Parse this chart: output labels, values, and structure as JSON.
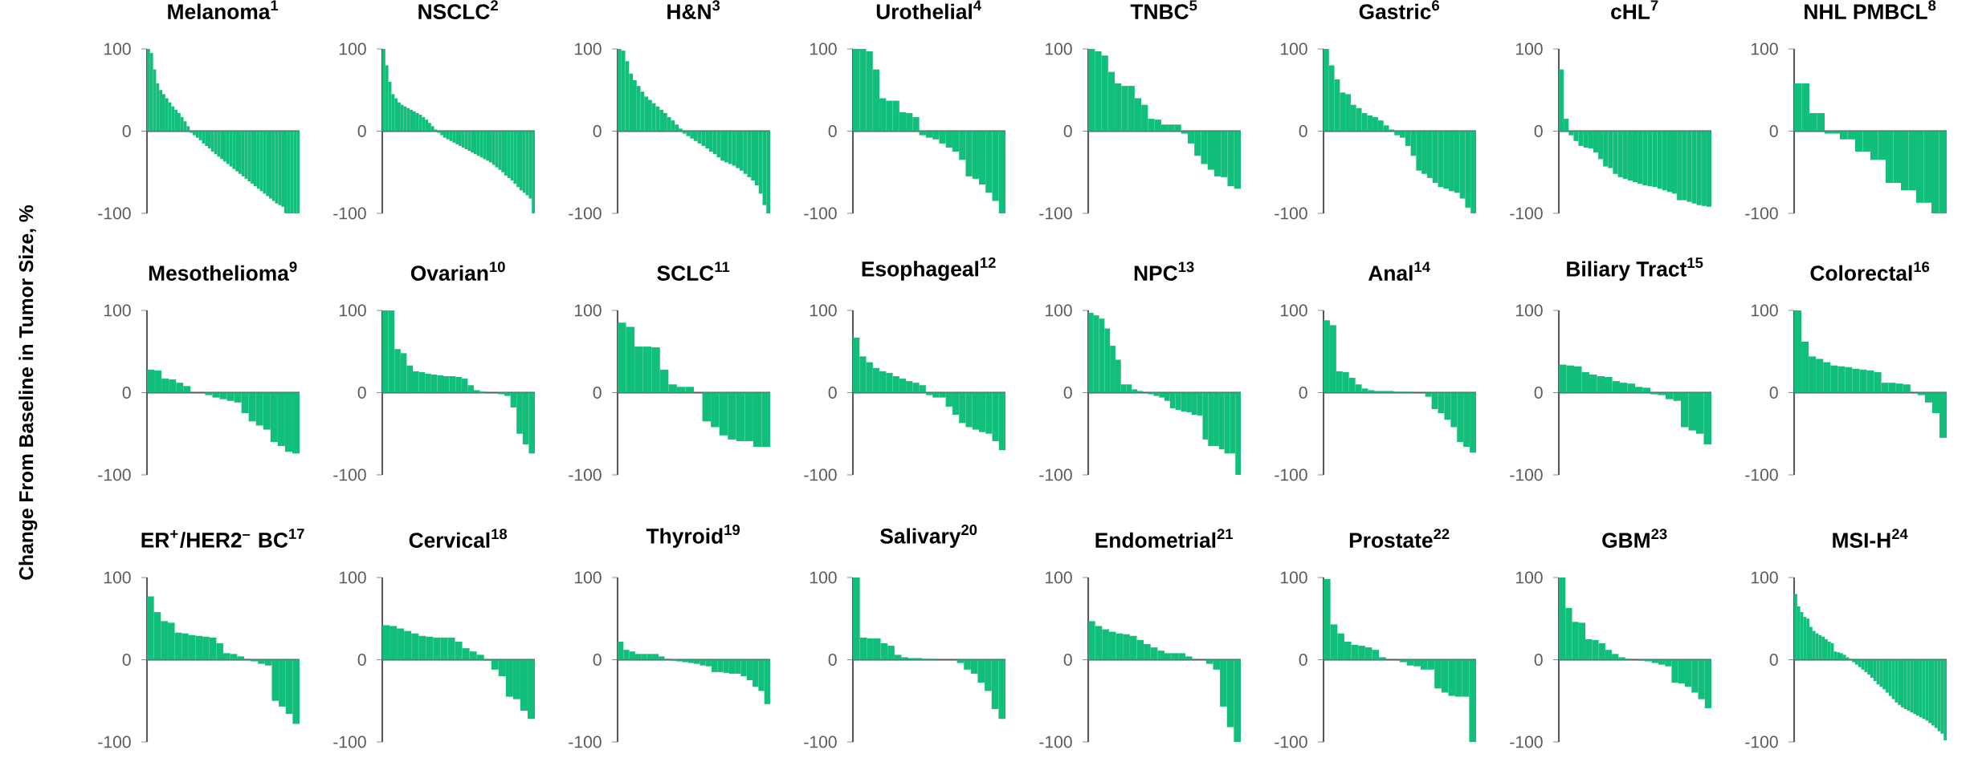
{
  "chart_data": [
    {
      "type": "bar",
      "title": "Melanoma$^{1}$",
      "color": "#12bf7a",
      "ylim": [
        -100,
        100
      ],
      "yticks": [
        -100,
        0,
        100
      ],
      "categories": [
        null,
        null,
        null,
        null,
        null,
        null,
        null,
        null,
        null,
        null,
        null,
        null,
        null,
        null,
        null,
        null,
        null,
        null,
        null,
        null,
        null,
        null,
        null,
        null,
        null,
        null,
        null,
        null,
        null,
        null,
        null,
        null,
        null,
        null,
        null,
        null,
        null,
        null,
        null,
        null,
        null,
        null,
        null,
        null,
        null,
        null,
        null,
        null,
        null,
        null
      ],
      "values": [
        100,
        95,
        75,
        58,
        50,
        45,
        40,
        35,
        30,
        26,
        22,
        17,
        12,
        6,
        -2,
        -5,
        -8,
        -11,
        -15,
        -18,
        -21,
        -25,
        -28,
        -31,
        -34,
        -37,
        -40,
        -43,
        -46,
        -49,
        -52,
        -55,
        -58,
        -61,
        -64,
        -67,
        -70,
        -73,
        -76,
        -79,
        -82,
        -85,
        -88,
        -90,
        -92,
        -100,
        -100,
        -100,
        -100,
        -100
      ]
    },
    {
      "type": "bar",
      "title": "NSCLC$^{2}$",
      "color": "#12bf7a",
      "ylim": [
        -100,
        100
      ],
      "yticks": [
        -100,
        0,
        100
      ],
      "categories": [
        null,
        null,
        null,
        null,
        null,
        null,
        null,
        null,
        null,
        null,
        null,
        null,
        null,
        null,
        null,
        null,
        null,
        null,
        null,
        null,
        null,
        null,
        null,
        null,
        null,
        null,
        null,
        null,
        null,
        null,
        null,
        null,
        null,
        null,
        null,
        null,
        null,
        null,
        null,
        null,
        null,
        null,
        null,
        null,
        null,
        null,
        null,
        null,
        null,
        null
      ],
      "values": [
        100,
        80,
        60,
        45,
        40,
        35,
        32,
        30,
        28,
        26,
        24,
        22,
        20,
        17,
        14,
        10,
        6,
        2,
        -2,
        -5,
        -8,
        -10,
        -12,
        -14,
        -16,
        -18,
        -20,
        -22,
        -24,
        -26,
        -28,
        -30,
        -32,
        -34,
        -36,
        -38,
        -41,
        -44,
        -47,
        -50,
        -54,
        -57,
        -60,
        -64,
        -68,
        -72,
        -75,
        -78,
        -82,
        -100
      ]
    },
    {
      "type": "bar",
      "title": "H&N$^{3}$",
      "color": "#12bf7a",
      "ylim": [
        -100,
        100
      ],
      "yticks": [
        -100,
        0,
        100
      ],
      "categories": [
        null,
        null,
        null,
        null,
        null,
        null,
        null,
        null,
        null,
        null,
        null,
        null,
        null,
        null,
        null,
        null,
        null,
        null,
        null,
        null,
        null,
        null,
        null,
        null,
        null,
        null,
        null,
        null,
        null,
        null,
        null,
        null,
        null,
        null,
        null,
        null,
        null,
        null,
        null,
        null
      ],
      "values": [
        100,
        98,
        85,
        70,
        62,
        55,
        48,
        42,
        38,
        34,
        30,
        26,
        22,
        17,
        13,
        8,
        3,
        -3,
        -6,
        -9,
        -12,
        -15,
        -18,
        -21,
        -25,
        -28,
        -32,
        -36,
        -38,
        -40,
        -42,
        -45,
        -48,
        -52,
        -56,
        -60,
        -66,
        -76,
        -90,
        -100
      ]
    },
    {
      "type": "bar",
      "title": "Urothelial$^{4}$",
      "color": "#12bf7a",
      "ylim": [
        -100,
        100
      ],
      "yticks": [
        -100,
        0,
        100
      ],
      "categories": [
        null,
        null,
        null,
        null,
        null,
        null,
        null,
        null,
        null,
        null,
        null,
        null,
        null,
        null,
        null,
        null,
        null,
        null,
        null,
        null,
        null,
        null,
        null
      ],
      "values": [
        100,
        100,
        97,
        75,
        40,
        37,
        37,
        23,
        22,
        17,
        -5,
        -8,
        -10,
        -15,
        -20,
        -25,
        -35,
        -55,
        -58,
        -65,
        -75,
        -85,
        -100
      ]
    },
    {
      "type": "bar",
      "title": "TNBC$^{5}$",
      "color": "#12bf7a",
      "ylim": [
        -100,
        100
      ],
      "yticks": [
        -100,
        0,
        100
      ],
      "categories": [
        null,
        null,
        null,
        null,
        null,
        null,
        null,
        null,
        null,
        null,
        null,
        null,
        null,
        null,
        null,
        null,
        null,
        null,
        null,
        null,
        null,
        null,
        null
      ],
      "values": [
        100,
        97,
        92,
        72,
        58,
        55,
        55,
        40,
        32,
        15,
        14,
        8,
        8,
        8,
        -3,
        -15,
        -30,
        -40,
        -47,
        -55,
        -56,
        -67,
        -70
      ]
    },
    {
      "type": "bar",
      "title": "Gastric$^{6}$",
      "color": "#12bf7a",
      "ylim": [
        -100,
        100
      ],
      "yticks": [
        -100,
        0,
        100
      ],
      "categories": [
        null,
        null,
        null,
        null,
        null,
        null,
        null,
        null,
        null,
        null,
        null,
        null,
        null,
        null,
        null,
        null,
        null,
        null,
        null,
        null,
        null,
        null,
        null,
        null,
        null,
        null,
        null,
        null
      ],
      "values": [
        100,
        80,
        63,
        47,
        45,
        32,
        28,
        22,
        19,
        17,
        13,
        7,
        2,
        -5,
        -8,
        -18,
        -30,
        -48,
        -52,
        -57,
        -63,
        -68,
        -70,
        -73,
        -75,
        -82,
        -93,
        -100
      ]
    },
    {
      "type": "bar",
      "title": "cHL$^{7}$",
      "color": "#12bf7a",
      "ylim": [
        -100,
        100
      ],
      "yticks": [
        -100,
        0,
        100
      ],
      "categories": [
        null,
        null,
        null,
        null,
        null,
        null,
        null,
        null,
        null,
        null,
        null,
        null,
        null,
        null,
        null,
        null,
        null,
        null,
        null,
        null,
        null,
        null,
        null,
        null,
        null,
        null,
        null,
        null,
        null,
        null,
        null
      ],
      "values": [
        75,
        15,
        -5,
        -12,
        -18,
        -20,
        -21,
        -26,
        -34,
        -43,
        -45,
        -52,
        -56,
        -58,
        -60,
        -62,
        -64,
        -66,
        -67,
        -68,
        -70,
        -72,
        -74,
        -76,
        -84,
        -84,
        -86,
        -88,
        -90,
        -91,
        -92
      ]
    },
    {
      "type": "bar",
      "title": "NHL PMBCL$^{8}$",
      "color": "#12bf7a",
      "ylim": [
        -100,
        100
      ],
      "yticks": [
        -100,
        0,
        100
      ],
      "categories": [
        null,
        null,
        null,
        null,
        null,
        null,
        null,
        null,
        null,
        null,
        null,
        null,
        null,
        null,
        null,
        null,
        null,
        null,
        null,
        null
      ],
      "values": [
        58,
        58,
        22,
        22,
        -3,
        -3,
        -10,
        -10,
        -25,
        -25,
        -35,
        -35,
        -63,
        -63,
        -72,
        -72,
        -87,
        -87,
        -100,
        -100
      ]
    },
    {
      "type": "bar",
      "title": "Mesothelioma$^{9}$",
      "ylabel": "Change From Baseline in Tumor Size, %",
      "color": "#12bf7a",
      "ylim": [
        -100,
        100
      ],
      "yticks": [
        -100,
        0,
        100
      ],
      "categories": [
        null,
        null,
        null,
        null,
        null,
        null,
        null,
        null,
        null,
        null,
        null,
        null,
        null,
        null,
        null,
        null,
        null,
        null,
        null,
        null,
        null
      ],
      "values": [
        28,
        27,
        17,
        16,
        12,
        8,
        0,
        0,
        -3,
        -6,
        -8,
        -10,
        -12,
        -25,
        -35,
        -40,
        -45,
        -60,
        -65,
        -72,
        -74
      ]
    },
    {
      "type": "bar",
      "title": "Ovarian$^{10}$",
      "color": "#12bf7a",
      "ylim": [
        -100,
        100
      ],
      "yticks": [
        -100,
        0,
        100
      ],
      "categories": [
        null,
        null,
        null,
        null,
        null,
        null,
        null,
        null,
        null,
        null,
        null,
        null,
        null,
        null,
        null,
        null,
        null,
        null,
        null,
        null,
        null,
        null,
        null,
        null,
        null
      ],
      "values": [
        100,
        100,
        53,
        48,
        33,
        26,
        25,
        23,
        22,
        21,
        20,
        20,
        19,
        17,
        9,
        3,
        1,
        0,
        0,
        -2,
        -4,
        -18,
        -50,
        -63,
        -74
      ]
    },
    {
      "type": "bar",
      "title": "SCLC$^{11}$",
      "color": "#12bf7a",
      "ylim": [
        -100,
        100
      ],
      "yticks": [
        -100,
        0,
        100
      ],
      "categories": [
        null,
        null,
        null,
        null,
        null,
        null,
        null,
        null,
        null,
        null,
        null,
        null,
        null,
        null,
        null,
        null,
        null,
        null
      ],
      "values": [
        85,
        80,
        56,
        56,
        55,
        28,
        10,
        7,
        7,
        0,
        -35,
        -42,
        -52,
        -57,
        -59,
        -59,
        -66,
        -66
      ]
    },
    {
      "type": "bar",
      "title": "Esophageal$^{12}$",
      "color": "#12bf7a",
      "ylim": [
        -100,
        100
      ],
      "yticks": [
        -100,
        0,
        100
      ],
      "categories": [
        null,
        null,
        null,
        null,
        null,
        null,
        null,
        null,
        null,
        null,
        null,
        null,
        null,
        null,
        null,
        null,
        null,
        null,
        null,
        null,
        null,
        null,
        null
      ],
      "values": [
        67,
        44,
        37,
        30,
        26,
        24,
        20,
        17,
        14,
        12,
        9,
        -3,
        -6,
        -6,
        -17,
        -27,
        -37,
        -42,
        -45,
        -48,
        -50,
        -59,
        -70
      ]
    },
    {
      "type": "bar",
      "title": "NPC$^{13}$",
      "color": "#12bf7a",
      "ylim": [
        -100,
        100
      ],
      "yticks": [
        -100,
        0,
        100
      ],
      "categories": [
        null,
        null,
        null,
        null,
        null,
        null,
        null,
        null,
        null,
        null,
        null,
        null,
        null,
        null,
        null,
        null,
        null,
        null,
        null,
        null,
        null,
        null,
        null,
        null,
        null,
        null,
        null,
        null
      ],
      "values": [
        97,
        94,
        90,
        78,
        57,
        40,
        10,
        10,
        4,
        2,
        0,
        -2,
        -4,
        -6,
        -10,
        -19,
        -21,
        -23,
        -24,
        -27,
        -28,
        -57,
        -65,
        -65,
        -69,
        -74,
        -74,
        -100
      ]
    },
    {
      "type": "bar",
      "title": "Anal$^{14}$",
      "color": "#12bf7a",
      "ylim": [
        -100,
        100
      ],
      "yticks": [
        -100,
        0,
        100
      ],
      "categories": [
        null,
        null,
        null,
        null,
        null,
        null,
        null,
        null,
        null,
        null,
        null,
        null,
        null,
        null,
        null,
        null,
        null,
        null,
        null,
        null,
        null,
        null,
        null,
        null
      ],
      "values": [
        88,
        82,
        26,
        25,
        18,
        10,
        5,
        3,
        2,
        2,
        2,
        1,
        1,
        1,
        0,
        0,
        -5,
        -20,
        -25,
        -33,
        -42,
        -60,
        -66,
        -73
      ]
    },
    {
      "type": "bar",
      "title": "Biliary Tract$^{15}$",
      "color": "#12bf7a",
      "ylim": [
        -100,
        100
      ],
      "yticks": [
        -100,
        0,
        100
      ],
      "categories": [
        null,
        null,
        null,
        null,
        null,
        null,
        null,
        null,
        null,
        null,
        null,
        null,
        null,
        null,
        null,
        null,
        null,
        null,
        null,
        null
      ],
      "values": [
        34,
        33,
        32,
        25,
        22,
        20,
        19,
        14,
        12,
        11,
        7,
        6,
        -2,
        -3,
        -8,
        -10,
        -42,
        -46,
        -50,
        -63
      ]
    },
    {
      "type": "bar",
      "title": "Colorectal$^{16}$",
      "color": "#12bf7a",
      "ylim": [
        -100,
        100
      ],
      "yticks": [
        -100,
        0,
        100
      ],
      "categories": [
        null,
        null,
        null,
        null,
        null,
        null,
        null,
        null,
        null,
        null,
        null,
        null,
        null,
        null,
        null,
        null,
        null,
        null,
        null,
        null,
        null
      ],
      "values": [
        100,
        62,
        44,
        41,
        37,
        33,
        32,
        31,
        29,
        28,
        27,
        25,
        12,
        12,
        11,
        10,
        0,
        -3,
        -12,
        -25,
        -55
      ]
    },
    {
      "type": "bar",
      "title": "ER$^{+}$/HER2$^{–}$ BC$^{17}$",
      "color": "#12bf7a",
      "ylim": [
        -100,
        100
      ],
      "yticks": [
        -100,
        0,
        100
      ],
      "categories": [
        null,
        null,
        null,
        null,
        null,
        null,
        null,
        null,
        null,
        null,
        null,
        null,
        null,
        null,
        null,
        null,
        null,
        null,
        null,
        null,
        null,
        null
      ],
      "values": [
        77,
        58,
        47,
        45,
        33,
        32,
        30,
        29,
        28,
        27,
        20,
        8,
        7,
        4,
        1,
        -2,
        -5,
        -7,
        -50,
        -57,
        -66,
        -78
      ]
    },
    {
      "type": "bar",
      "title": "Cervical$^{18}$",
      "color": "#12bf7a",
      "ylim": [
        -100,
        100
      ],
      "yticks": [
        -100,
        0,
        100
      ],
      "categories": [
        null,
        null,
        null,
        null,
        null,
        null,
        null,
        null,
        null,
        null,
        null,
        null,
        null,
        null,
        null,
        null,
        null,
        null,
        null,
        null,
        null
      ],
      "values": [
        42,
        41,
        38,
        35,
        32,
        29,
        28,
        27,
        27,
        27,
        22,
        14,
        10,
        6,
        -1,
        -12,
        -20,
        -45,
        -48,
        -62,
        -72
      ]
    },
    {
      "type": "bar",
      "title": "Thyroid$^{19}$",
      "color": "#12bf7a",
      "ylim": [
        -100,
        100
      ],
      "yticks": [
        -100,
        0,
        100
      ],
      "categories": [
        null,
        null,
        null,
        null,
        null,
        null,
        null,
        null,
        null,
        null,
        null,
        null,
        null,
        null,
        null,
        null,
        null,
        null,
        null,
        null,
        null,
        null,
        null,
        null,
        null,
        null
      ],
      "values": [
        22,
        12,
        10,
        7,
        7,
        7,
        7,
        4,
        1,
        -1,
        -2,
        -3,
        -4,
        -5,
        -7,
        -8,
        -15,
        -15,
        -16,
        -17,
        -17,
        -20,
        -25,
        -33,
        -38,
        -54
      ]
    },
    {
      "type": "bar",
      "title": "Salivary$^{20}$",
      "color": "#12bf7a",
      "ylim": [
        -100,
        100
      ],
      "yticks": [
        -100,
        0,
        100
      ],
      "categories": [
        null,
        null,
        null,
        null,
        null,
        null,
        null,
        null,
        null,
        null,
        null,
        null,
        null,
        null,
        null,
        null,
        null,
        null,
        null,
        null,
        null,
        null
      ],
      "values": [
        100,
        27,
        26,
        26,
        20,
        17,
        6,
        3,
        2,
        2,
        1,
        1,
        0,
        0,
        0,
        -4,
        -12,
        -17,
        -28,
        -38,
        -60,
        -72
      ]
    },
    {
      "type": "bar",
      "title": "Endometrial$^{21}$",
      "color": "#12bf7a",
      "ylim": [
        -100,
        100
      ],
      "yticks": [
        -100,
        0,
        100
      ],
      "categories": [
        null,
        null,
        null,
        null,
        null,
        null,
        null,
        null,
        null,
        null,
        null,
        null,
        null,
        null,
        null,
        null,
        null,
        null,
        null,
        null,
        null,
        null
      ],
      "values": [
        47,
        41,
        37,
        34,
        32,
        31,
        29,
        24,
        19,
        15,
        11,
        8,
        8,
        8,
        4,
        0,
        0,
        -5,
        -12,
        -57,
        -82,
        -100
      ]
    },
    {
      "type": "bar",
      "title": "Prostate$^{22}$",
      "color": "#12bf7a",
      "ylim": [
        -100,
        100
      ],
      "yticks": [
        -100,
        0,
        100
      ],
      "categories": [
        null,
        null,
        null,
        null,
        null,
        null,
        null,
        null,
        null,
        null,
        null,
        null,
        null,
        null,
        null,
        null,
        null,
        null,
        null,
        null,
        null,
        null
      ],
      "values": [
        98,
        43,
        32,
        22,
        18,
        17,
        15,
        12,
        3,
        0,
        0,
        -3,
        -7,
        -8,
        -12,
        -12,
        -35,
        -40,
        -44,
        -45,
        -45,
        -100
      ]
    },
    {
      "type": "bar",
      "title": "GBM$^{23}$",
      "color": "#12bf7a",
      "ylim": [
        -100,
        100
      ],
      "yticks": [
        -100,
        0,
        100
      ],
      "categories": [
        null,
        null,
        null,
        null,
        null,
        null,
        null,
        null,
        null,
        null,
        null,
        null,
        null,
        null,
        null,
        null,
        null,
        null,
        null,
        null,
        null,
        null,
        null
      ],
      "values": [
        100,
        63,
        46,
        45,
        25,
        24,
        20,
        12,
        7,
        3,
        1,
        0,
        -1,
        -2,
        -4,
        -6,
        -8,
        -28,
        -29,
        -33,
        -40,
        -48,
        -59
      ]
    },
    {
      "type": "bar",
      "title": "MSI-H$^{24}$",
      "color": "#12bf7a",
      "ylim": [
        -100,
        100
      ],
      "yticks": [
        -100,
        0,
        100
      ],
      "categories": [
        null,
        null,
        null,
        null,
        null,
        null,
        null,
        null,
        null,
        null,
        null,
        null,
        null,
        null,
        null,
        null,
        null,
        null,
        null,
        null,
        null,
        null,
        null,
        null,
        null,
        null,
        null,
        null,
        null,
        null,
        null,
        null,
        null,
        null,
        null,
        null,
        null,
        null,
        null,
        null,
        null,
        null,
        null,
        null,
        null,
        null,
        null,
        null,
        null,
        null
      ],
      "values": [
        80,
        65,
        58,
        52,
        50,
        40,
        35,
        32,
        30,
        28,
        25,
        22,
        20,
        10,
        9,
        8,
        6,
        3,
        1,
        -3,
        -6,
        -9,
        -12,
        -15,
        -18,
        -22,
        -26,
        -30,
        -33,
        -36,
        -40,
        -44,
        -48,
        -52,
        -55,
        -58,
        -60,
        -62,
        -64,
        -66,
        -68,
        -70,
        -72,
        -74,
        -77,
        -80,
        -83,
        -87,
        -90,
        -98
      ]
    }
  ]
}
